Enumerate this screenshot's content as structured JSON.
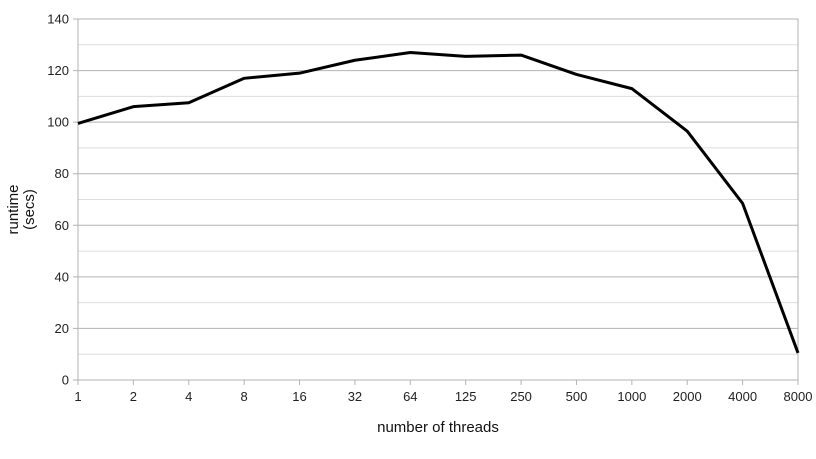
{
  "chart_data": {
    "type": "line",
    "title": "",
    "xlabel": "number of threads",
    "ylabel": [
      "runtime",
      "(secs)"
    ],
    "categories": [
      "1",
      "2",
      "4",
      "8",
      "16",
      "32",
      "64",
      "125",
      "250",
      "500",
      "1000",
      "2000",
      "4000",
      "8000"
    ],
    "series": [
      {
        "values": [
          99.5,
          106,
          107.5,
          117,
          119,
          124,
          127,
          125.5,
          126,
          118.5,
          113,
          96.5,
          68.5,
          10.5
        ]
      }
    ],
    "ylim": [
      0,
      140
    ],
    "yticks": [
      0,
      20,
      40,
      60,
      80,
      100,
      120,
      140
    ],
    "grid": "major and minor horizontal",
    "legend": "none",
    "colors": {
      "line": "#000000",
      "major_grid": "#b3b3b3",
      "minor_grid": "#dddddd",
      "frame": "#b3b3b3"
    }
  }
}
